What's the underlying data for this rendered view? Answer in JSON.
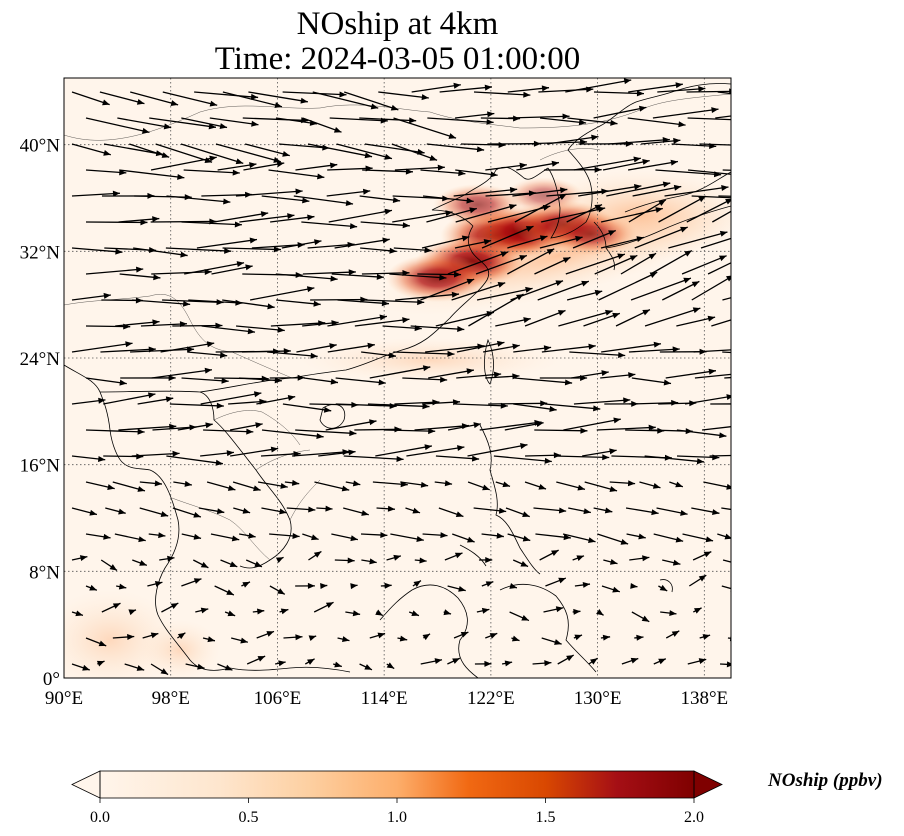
{
  "title_line1": "NOship at 4km",
  "title_line2": "Time: 2024-03-05 01:00:00",
  "map": {
    "lon_range": [
      90,
      140
    ],
    "lat_range": [
      0,
      45
    ],
    "lon_ticks": [
      "90°E",
      "98°E",
      "106°E",
      "114°E",
      "122°E",
      "130°E",
      "138°E"
    ],
    "lat_ticks": [
      "0°",
      "8°N",
      "16°N",
      "24°N",
      "32°N",
      "40°N"
    ],
    "lon_tick_values": [
      90,
      98,
      106,
      114,
      122,
      130,
      138
    ],
    "lat_tick_values": [
      0,
      8,
      16,
      24,
      32,
      40
    ]
  },
  "colorbar": {
    "label": "NOship (ppbv)",
    "ticks": [
      "0.0",
      "0.5",
      "1.0",
      "1.5",
      "2.0"
    ],
    "tick_values": [
      0.0,
      0.5,
      1.0,
      1.5,
      2.0
    ],
    "range": [
      0.0,
      2.0
    ],
    "colormap": [
      "#fff5eb",
      "#fdd9b5",
      "#fdae6b",
      "#f16913",
      "#d94801",
      "#a50f15",
      "#7f0000"
    ]
  },
  "hotspots": [
    {
      "lon": 122.5,
      "lat": 33.2,
      "value": 2.0
    },
    {
      "lon": 124.5,
      "lat": 33.5,
      "value": 1.9
    },
    {
      "lon": 120.5,
      "lat": 31.2,
      "value": 1.9
    },
    {
      "lon": 118.0,
      "lat": 30.0,
      "value": 1.7
    },
    {
      "lon": 127.5,
      "lat": 34.0,
      "value": 1.7
    },
    {
      "lon": 129.5,
      "lat": 33.3,
      "value": 1.4
    },
    {
      "lon": 121.0,
      "lat": 35.5,
      "value": 1.3
    },
    {
      "lon": 126.0,
      "lat": 36.2,
      "value": 1.0
    }
  ]
}
